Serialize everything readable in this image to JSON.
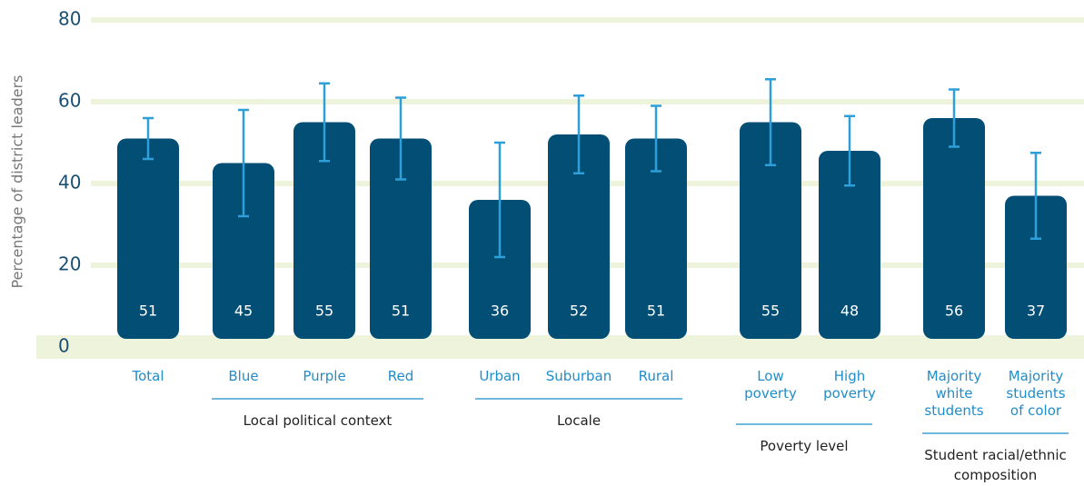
{
  "chart_data": {
    "type": "bar",
    "y_axis_label": "Percentage of district leaders",
    "categories": [
      "Total",
      "Blue",
      "Purple",
      "Red",
      "Urban",
      "Suburban",
      "Rural",
      "Low poverty",
      "High poverty",
      "Majority white students",
      "Majority students of color"
    ],
    "values": [
      51,
      45,
      55,
      51,
      36,
      52,
      51,
      55,
      48,
      56,
      37
    ],
    "errors": [
      5,
      13,
      9.5,
      10,
      14,
      9.5,
      8,
      10.5,
      8.5,
      7,
      10.5
    ],
    "groups": [
      "Local political context",
      "Locale",
      "Poverty level",
      "Student racial/ethnic composition"
    ],
    "color": "#024e75",
    "error_color": "#2e9fd9",
    "ylim": [
      0,
      80
    ],
    "yticks": [
      0,
      20,
      40,
      60,
      80
    ],
    "grid": true
  }
}
